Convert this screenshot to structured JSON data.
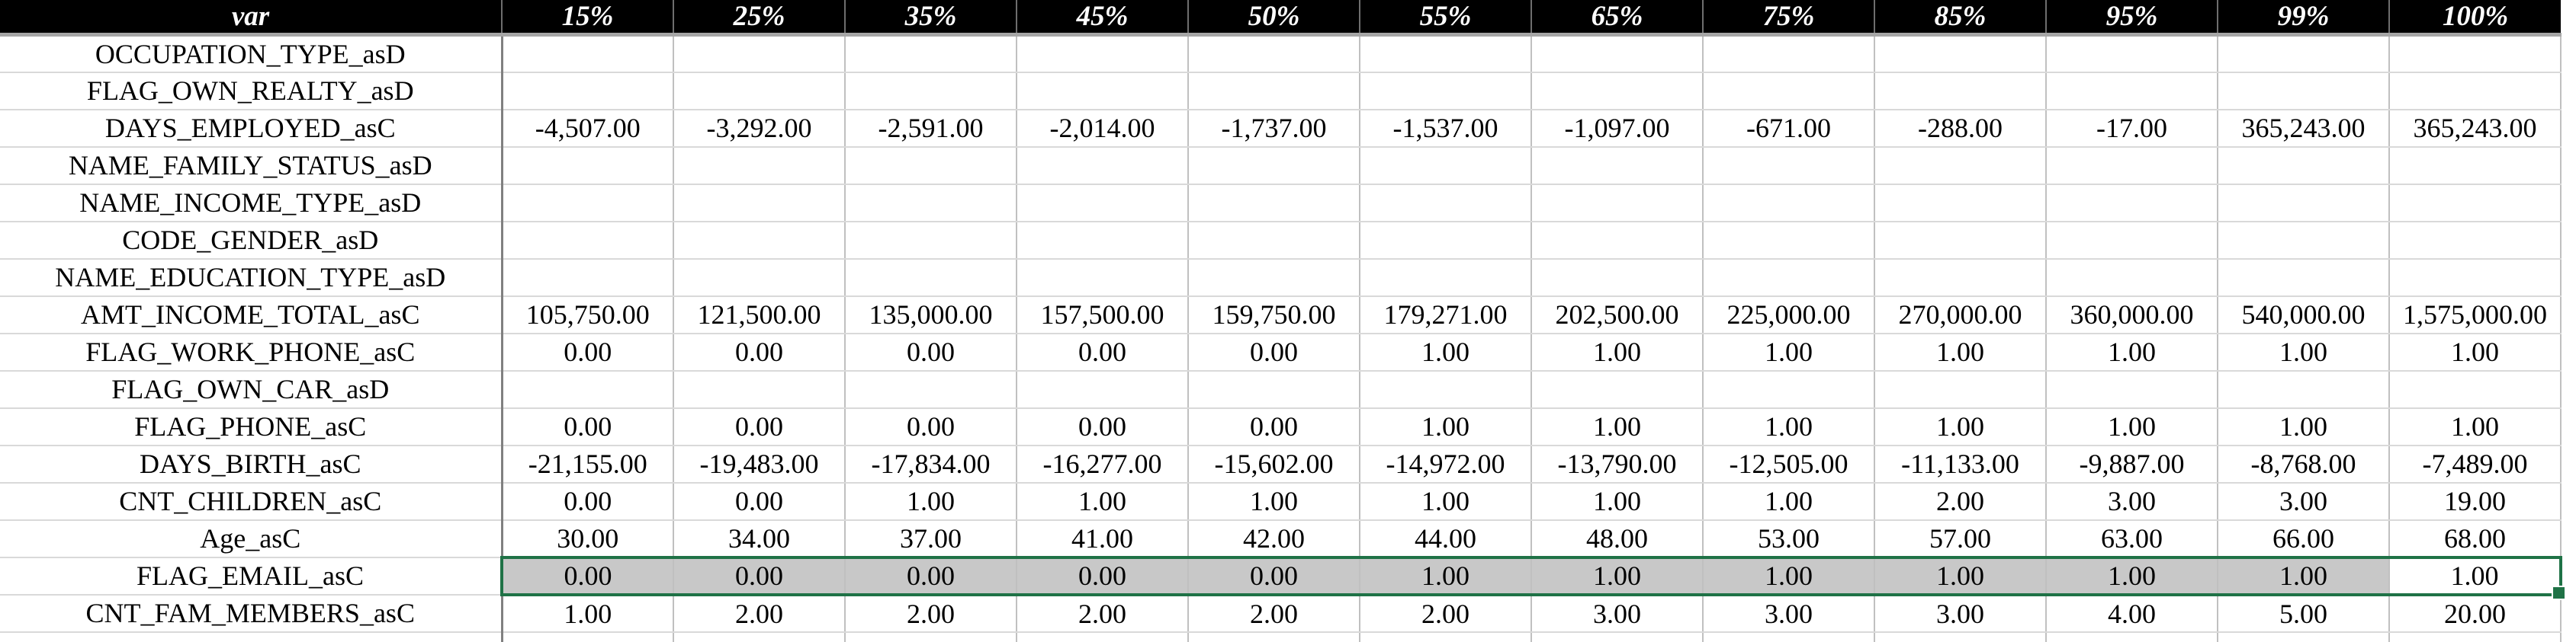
{
  "table": {
    "columns": [
      "var",
      "15%",
      "25%",
      "35%",
      "45%",
      "50%",
      "55%",
      "65%",
      "75%",
      "85%",
      "95%",
      "99%",
      "100%"
    ],
    "rows": [
      {
        "var": "OCCUPATION_TYPE_asD",
        "values": [
          "",
          "",
          "",
          "",
          "",
          "",
          "",
          "",
          "",
          "",
          "",
          ""
        ]
      },
      {
        "var": "FLAG_OWN_REALTY_asD",
        "values": [
          "",
          "",
          "",
          "",
          "",
          "",
          "",
          "",
          "",
          "",
          "",
          ""
        ]
      },
      {
        "var": "DAYS_EMPLOYED_asC",
        "values": [
          "-4,507.00",
          "-3,292.00",
          "-2,591.00",
          "-2,014.00",
          "-1,737.00",
          "-1,537.00",
          "-1,097.00",
          "-671.00",
          "-288.00",
          "-17.00",
          "365,243.00",
          "365,243.00"
        ]
      },
      {
        "var": "NAME_FAMILY_STATUS_asD",
        "values": [
          "",
          "",
          "",
          "",
          "",
          "",
          "",
          "",
          "",
          "",
          "",
          ""
        ]
      },
      {
        "var": "NAME_INCOME_TYPE_asD",
        "values": [
          "",
          "",
          "",
          "",
          "",
          "",
          "",
          "",
          "",
          "",
          "",
          ""
        ]
      },
      {
        "var": "CODE_GENDER_asD",
        "values": [
          "",
          "",
          "",
          "",
          "",
          "",
          "",
          "",
          "",
          "",
          "",
          ""
        ]
      },
      {
        "var": "NAME_EDUCATION_TYPE_asD",
        "values": [
          "",
          "",
          "",
          "",
          "",
          "",
          "",
          "",
          "",
          "",
          "",
          ""
        ]
      },
      {
        "var": "AMT_INCOME_TOTAL_asC",
        "values": [
          "105,750.00",
          "121,500.00",
          "135,000.00",
          "157,500.00",
          "159,750.00",
          "179,271.00",
          "202,500.00",
          "225,000.00",
          "270,000.00",
          "360,000.00",
          "540,000.00",
          "1,575,000.00"
        ]
      },
      {
        "var": "FLAG_WORK_PHONE_asC",
        "values": [
          "0.00",
          "0.00",
          "0.00",
          "0.00",
          "0.00",
          "1.00",
          "1.00",
          "1.00",
          "1.00",
          "1.00",
          "1.00",
          "1.00"
        ]
      },
      {
        "var": "FLAG_OWN_CAR_asD",
        "values": [
          "",
          "",
          "",
          "",
          "",
          "",
          "",
          "",
          "",
          "",
          "",
          ""
        ]
      },
      {
        "var": "FLAG_PHONE_asC",
        "values": [
          "0.00",
          "0.00",
          "0.00",
          "0.00",
          "0.00",
          "1.00",
          "1.00",
          "1.00",
          "1.00",
          "1.00",
          "1.00",
          "1.00"
        ]
      },
      {
        "var": "DAYS_BIRTH_asC",
        "values": [
          "-21,155.00",
          "-19,483.00",
          "-17,834.00",
          "-16,277.00",
          "-15,602.00",
          "-14,972.00",
          "-13,790.00",
          "-12,505.00",
          "-11,133.00",
          "-9,887.00",
          "-8,768.00",
          "-7,489.00"
        ]
      },
      {
        "var": "CNT_CHILDREN_asC",
        "values": [
          "0.00",
          "0.00",
          "1.00",
          "1.00",
          "1.00",
          "1.00",
          "1.00",
          "1.00",
          "2.00",
          "3.00",
          "3.00",
          "19.00"
        ]
      },
      {
        "var": "Age_asC",
        "values": [
          "30.00",
          "34.00",
          "37.00",
          "41.00",
          "42.00",
          "44.00",
          "48.00",
          "53.00",
          "57.00",
          "63.00",
          "66.00",
          "68.00"
        ]
      },
      {
        "var": "FLAG_EMAIL_asC",
        "values": [
          "0.00",
          "0.00",
          "0.00",
          "0.00",
          "0.00",
          "1.00",
          "1.00",
          "1.00",
          "1.00",
          "1.00",
          "1.00",
          "1.00"
        ],
        "selected": true
      },
      {
        "var": "CNT_FAM_MEMBERS_asC",
        "values": [
          "1.00",
          "2.00",
          "2.00",
          "2.00",
          "2.00",
          "2.00",
          "3.00",
          "3.00",
          "3.00",
          "4.00",
          "5.00",
          "20.00"
        ]
      }
    ],
    "selection": {
      "row": "FLAG_EMAIL_asC",
      "from_column": "15%",
      "to_column": "100%",
      "active_cell_column": "100%",
      "active_cell_value": "1.00"
    },
    "colors": {
      "header_bg": "#000000",
      "header_text": "#ffffff",
      "header_underline": "#a6a6a6",
      "gridline_vertical": "#c0c0c0",
      "gridline_horizontal": "#d9d9d9",
      "label_column_border": "#808080",
      "selection_fill": "#c8c8c8",
      "selection_border": "#1f7246"
    }
  }
}
